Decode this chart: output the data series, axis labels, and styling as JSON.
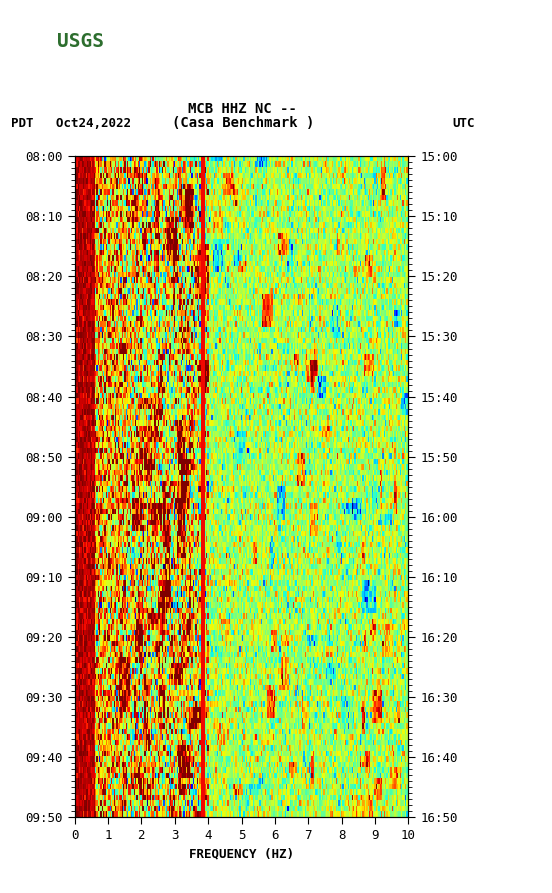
{
  "title_line1": "MCB HHZ NC --",
  "title_line2": "(Casa Benchmark )",
  "left_label": "PDT   Oct24,2022",
  "right_label": "UTC",
  "xlabel": "FREQUENCY (HZ)",
  "freq_min": 0,
  "freq_max": 10,
  "freq_ticks": [
    0,
    1,
    2,
    3,
    4,
    5,
    6,
    7,
    8,
    9,
    10
  ],
  "left_time_labels": [
    "08:00",
    "08:10",
    "08:20",
    "08:30",
    "08:40",
    "08:50",
    "09:00",
    "09:10",
    "09:20",
    "09:30",
    "09:40",
    "09:50"
  ],
  "right_time_labels": [
    "15:00",
    "15:10",
    "15:20",
    "15:30",
    "15:40",
    "15:50",
    "16:00",
    "16:10",
    "16:20",
    "16:30",
    "16:40",
    "16:50"
  ],
  "n_time_steps": 120,
  "n_freq_steps": 250,
  "background_color": "#ffffff",
  "colormap": "jet",
  "noise_seed": 42,
  "usgs_green": "#2d6e2e"
}
